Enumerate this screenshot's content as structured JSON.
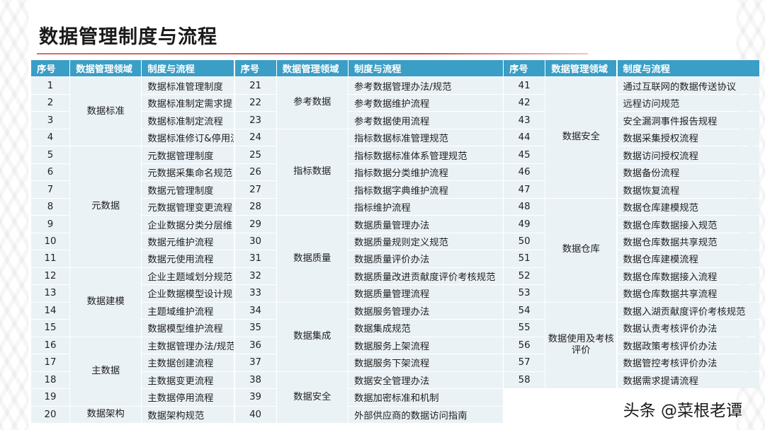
{
  "title": "数据管理制度与流程",
  "headers": [
    "序号",
    "数据管理领域",
    "制度与流程",
    "序号",
    "数据管理领域",
    "制度与流程",
    "序号",
    "数据管理领域",
    "制度与流程"
  ],
  "col1": {
    "numbers": [
      "1",
      "2",
      "3",
      "4",
      "5",
      "6",
      "7",
      "8",
      "9",
      "10",
      "11",
      "12",
      "13",
      "14",
      "15",
      "16",
      "17",
      "18",
      "19",
      "20"
    ],
    "domains": [
      {
        "label": "数据标准",
        "start": 1,
        "span": 4
      },
      {
        "label": "元数据",
        "start": 5,
        "span": 7
      },
      {
        "label": "数据建模",
        "start": 12,
        "span": 4
      },
      {
        "label": "主数据",
        "start": 16,
        "span": 4
      },
      {
        "label": "数据架构",
        "start": 20,
        "span": 1
      }
    ],
    "processes": [
      "数据标准管理制度",
      "数据标准制定需求提",
      "数据标准制定流程",
      "数据标准修订&停用流",
      "元数据管理制度",
      "元数据采集命名规范",
      "数据元管理制度",
      "元数据管理变更流程",
      "企业数据分类分层维",
      "数据元维护流程",
      "数据元使用流程",
      "企业主题域划分规范",
      "企业数据模型设计规",
      "主题域维护流程",
      "数据模型维护流程",
      "主数据管理办法/规范",
      "主数据创建流程",
      "主数据变更流程",
      "主数据停用流程",
      "数据架构规范"
    ]
  },
  "col2": {
    "numbers": [
      "21",
      "22",
      "23",
      "24",
      "25",
      "26",
      "27",
      "28",
      "29",
      "30",
      "31",
      "32",
      "33",
      "34",
      "35",
      "36",
      "37",
      "38",
      "39",
      "40"
    ],
    "domains": [
      {
        "label": "参考数据",
        "start": 1,
        "span": 3
      },
      {
        "label": "指标数据",
        "start": 4,
        "span": 5
      },
      {
        "label": "数据质量",
        "start": 9,
        "span": 5
      },
      {
        "label": "数据集成",
        "start": 14,
        "span": 4
      },
      {
        "label": "数据安全",
        "start": 18,
        "span": 3
      }
    ],
    "processes": [
      "参考数据管理办法/规范",
      "参考数据维护流程",
      "参考数据使用流程",
      "指标数据标准管理规范",
      "指标数据标准体系管理规范",
      "指标数据分类维护流程",
      "指标数据字典维护流程",
      "指标维护流程",
      "数据质量管理办法",
      "数据质量规则定义规范",
      "数据质量评价办法",
      "数据质量改进贡献度评价考核规范",
      "数据质量管理流程",
      "数据服务管理办法",
      "数据集成规范",
      "数据服务上架流程",
      "数据服务下架流程",
      "数据安全管理办法",
      "数据加密标准和机制",
      "外部供应商的数据访问指南"
    ]
  },
  "col3": {
    "numbers": [
      "41",
      "42",
      "43",
      "44",
      "45",
      "46",
      "47",
      "48",
      "49",
      "50",
      "51",
      "52",
      "53",
      "54",
      "55",
      "56",
      "57",
      "58"
    ],
    "domains": [
      {
        "label": "数据安全",
        "start": 1,
        "span": 7
      },
      {
        "label": "数据仓库",
        "start": 8,
        "span": 6
      },
      {
        "label": "数据使用及考核评价",
        "start": 14,
        "span": 5
      }
    ],
    "processes": [
      "通过互联网的数据传送协议",
      "远程访问规范",
      "安全漏洞事件报告规程",
      "数据采集授权流程",
      "数据访问授权流程",
      "数据备份流程",
      "数据恢复流程",
      "数据仓库建模规范",
      "数据仓库数据接入规范",
      "数据仓库数据共享规范",
      "数据仓库建模流程",
      "数据仓库数据接入流程",
      "数据仓库数据共享流程",
      "数据入湖贡献度评价考核规范",
      "数据认责考核评价办法",
      "数据政策考核评价办法",
      "数据管控考核评价办法",
      "数据需求提请流程"
    ]
  },
  "watermark": "头条 @菜根老谭"
}
